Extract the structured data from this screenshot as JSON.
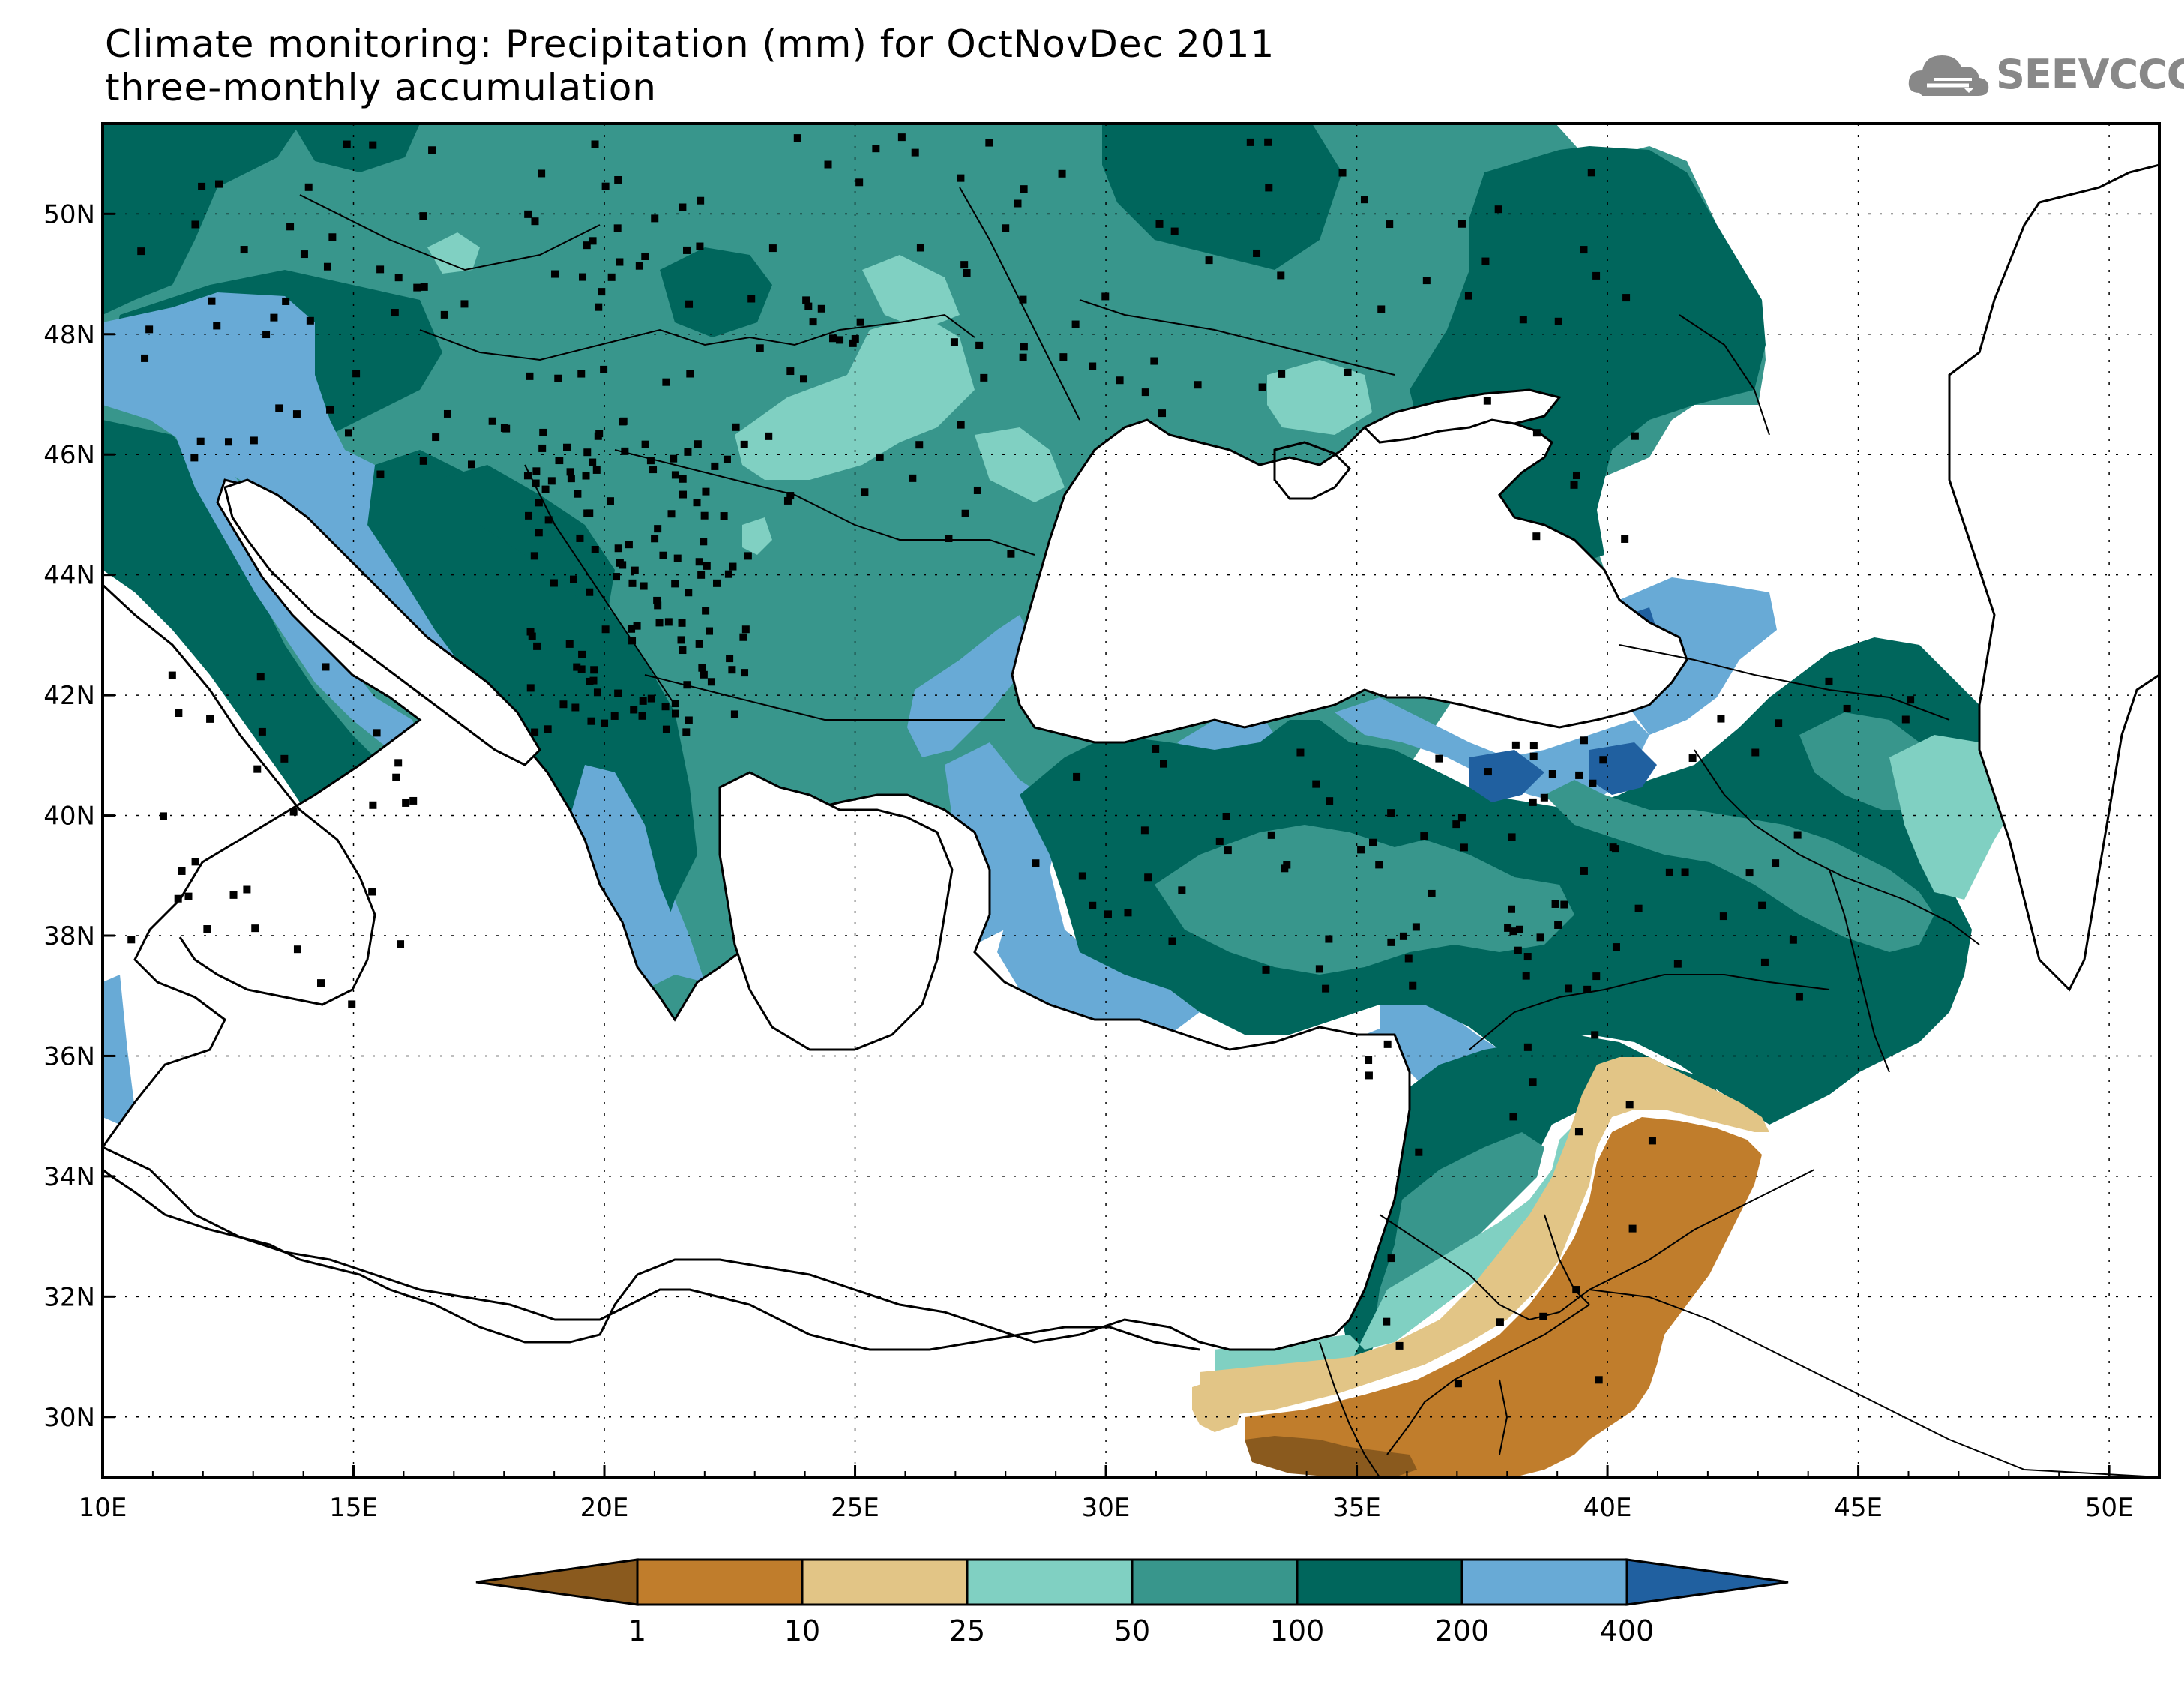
{
  "header": {
    "title_line1": "Climate monitoring: Precipitation (mm) for OctNovDec 2011",
    "title_line2": "three-monthly accumulation",
    "logo_text": "SEEVCCC"
  },
  "map": {
    "lon_range": [
      10,
      51
    ],
    "lat_range": [
      29,
      51.5
    ],
    "x_ticks": [
      "10E",
      "15E",
      "20E",
      "25E",
      "30E",
      "35E",
      "40E",
      "45E",
      "50E"
    ],
    "y_ticks": [
      "30N",
      "32N",
      "34N",
      "36N",
      "38N",
      "40N",
      "42N",
      "44N",
      "46N",
      "48N",
      "50N"
    ]
  },
  "colorbar": {
    "labels": [
      "1",
      "10",
      "25",
      "50",
      "100",
      "200",
      "400"
    ],
    "colors": [
      "#8a5a1e",
      "#c07d2c",
      "#e2c586",
      "#80d0c2",
      "#38968c",
      "#00665c",
      "#68aad6",
      "#2060a0"
    ]
  },
  "colors": {
    "c_lt50": "#80d0c2",
    "c_50_100": "#38968c",
    "c_100_200": "#00665c",
    "c_200_400": "#68aad6",
    "c_gt400": "#2060a0",
    "c_10_25": "#e2c586",
    "c_1_10": "#c07d2c",
    "c_lt1": "#8a5a1e"
  }
}
